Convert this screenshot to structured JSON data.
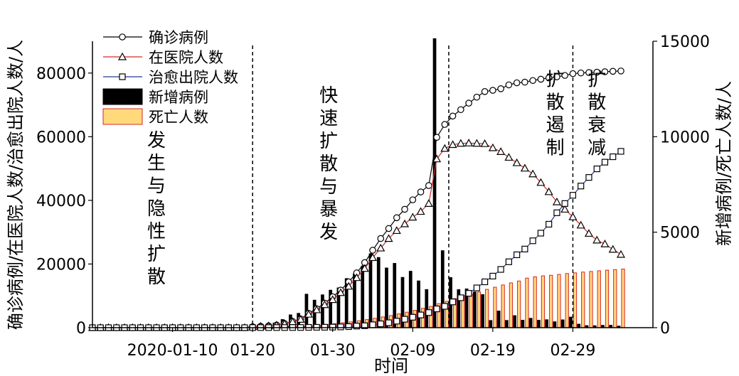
{
  "chart_data": {
    "type": "bar+line",
    "xlabel": "时间",
    "ylabel_left": "确诊病例/在医院人数/治愈出院人数/人",
    "ylabel_right": "新增病例/死亡人数/人",
    "ylim_left": [
      0,
      90000
    ],
    "ylim_right": [
      0,
      15000
    ],
    "xlim": [
      0,
      70
    ],
    "x_ticks": [
      {
        "pos": 10,
        "label": "2020-01-10"
      },
      {
        "pos": 20,
        "label": "01-20"
      },
      {
        "pos": 30,
        "label": "01-30"
      },
      {
        "pos": 40,
        "label": "02-09"
      },
      {
        "pos": 50,
        "label": "02-19"
      },
      {
        "pos": 60,
        "label": "02-29"
      }
    ],
    "y_ticks_left": [
      0,
      20000,
      40000,
      60000,
      80000
    ],
    "y_ticks_right": [
      0,
      5000,
      10000,
      15000
    ],
    "vlines": [
      20,
      44.5,
      60
    ],
    "phases": [
      {
        "label": "发生与隐性扩散",
        "x": 8,
        "y_top": 57000
      },
      {
        "label": "快速扩散与暴发",
        "x": 29.5,
        "y_top": 71000
      },
      {
        "label": "扩散遏制",
        "x": 57.8,
        "y_top": 76000
      },
      {
        "label": "扩散衰减",
        "x": 63,
        "y_top": 76000
      }
    ],
    "series": [
      {
        "name": "确诊病例",
        "kind": "line",
        "axis": "left",
        "color": "#000000",
        "marker": "circle",
        "x": [
          0,
          1,
          2,
          3,
          4,
          5,
          6,
          7,
          8,
          9,
          10,
          11,
          12,
          13,
          14,
          15,
          16,
          17,
          18,
          19,
          20,
          21,
          22,
          23,
          24,
          25,
          26,
          27,
          28,
          29,
          30,
          31,
          32,
          33,
          34,
          35,
          36,
          37,
          38,
          39,
          40,
          41,
          42,
          43,
          44,
          45,
          46,
          47,
          48,
          49,
          50,
          51,
          52,
          53,
          54,
          55,
          56,
          57,
          58,
          59,
          60,
          61,
          62,
          63,
          64,
          65,
          66
        ],
        "values": [
          0,
          0,
          0,
          0,
          0,
          0,
          0,
          0,
          0,
          0,
          0,
          0,
          0,
          0,
          0,
          0,
          0,
          0,
          0,
          0,
          291,
          440,
          571,
          830,
          1287,
          1975,
          2744,
          4515,
          5974,
          7711,
          9692,
          11791,
          14380,
          17205,
          20438,
          24324,
          28018,
          31161,
          34546,
          37198,
          40171,
          42638,
          44653,
          59804,
          63851,
          66492,
          68500,
          70548,
          72436,
          74185,
          74576,
          75077,
          76288,
          76936,
          77150,
          77658,
          78064,
          78497,
          78824,
          79251,
          79824,
          80026,
          80151,
          80270,
          80409,
          80552,
          80651
        ]
      },
      {
        "name": "在医院人数",
        "kind": "line",
        "axis": "left",
        "color": "#d62728",
        "marker": "triangle",
        "x": [
          0,
          1,
          2,
          3,
          4,
          5,
          6,
          7,
          8,
          9,
          10,
          11,
          12,
          13,
          14,
          15,
          16,
          17,
          18,
          19,
          20,
          21,
          22,
          23,
          24,
          25,
          26,
          27,
          28,
          29,
          30,
          31,
          32,
          33,
          34,
          35,
          36,
          37,
          38,
          39,
          40,
          41,
          42,
          43,
          44,
          45,
          46,
          47,
          48,
          49,
          50,
          51,
          52,
          53,
          54,
          55,
          56,
          57,
          58,
          59,
          60,
          61,
          62,
          63,
          64,
          65,
          66
        ],
        "values": [
          0,
          0,
          0,
          0,
          0,
          0,
          0,
          0,
          0,
          0,
          0,
          0,
          0,
          0,
          0,
          0,
          0,
          0,
          0,
          0,
          280,
          420,
          550,
          790,
          1200,
          1850,
          2600,
          4200,
          5600,
          7200,
          8800,
          11000,
          13000,
          15700,
          18600,
          22000,
          25000,
          28000,
          30500,
          32600,
          34700,
          36500,
          39000,
          53000,
          56300,
          57500,
          57900,
          58000,
          57900,
          57800,
          56500,
          55300,
          53500,
          51800,
          50100,
          48300,
          45600,
          42700,
          39500,
          37200,
          34800,
          32200,
          29600,
          27500,
          26300,
          24600,
          23000
        ]
      },
      {
        "name": "治愈出院人数",
        "kind": "line",
        "axis": "left",
        "color": "#1f3a93",
        "marker": "square",
        "x": [
          0,
          1,
          2,
          3,
          4,
          5,
          6,
          7,
          8,
          9,
          10,
          11,
          12,
          13,
          14,
          15,
          16,
          17,
          18,
          19,
          20,
          21,
          22,
          23,
          24,
          25,
          26,
          27,
          28,
          29,
          30,
          31,
          32,
          33,
          34,
          35,
          36,
          37,
          38,
          39,
          40,
          41,
          42,
          43,
          44,
          45,
          46,
          47,
          48,
          49,
          50,
          51,
          52,
          53,
          54,
          55,
          56,
          57,
          58,
          59,
          60,
          61,
          62,
          63,
          64,
          65,
          66
        ],
        "values": [
          0,
          0,
          0,
          0,
          0,
          0,
          0,
          0,
          0,
          0,
          0,
          0,
          0,
          0,
          0,
          0,
          0,
          0,
          0,
          0,
          25,
          28,
          30,
          35,
          40,
          50,
          60,
          100,
          120,
          130,
          170,
          240,
          330,
          500,
          600,
          900,
          1200,
          1540,
          2050,
          2650,
          3280,
          3990,
          4740,
          5900,
          6700,
          8100,
          9400,
          10800,
          12500,
          14400,
          16200,
          18300,
          20700,
          22900,
          24700,
          27300,
          29700,
          32500,
          36100,
          39000,
          41600,
          44500,
          47200,
          49900,
          52000,
          53700,
          55400
        ]
      },
      {
        "name": "新增病例",
        "kind": "bar",
        "axis": "right",
        "color": "#000000",
        "x": [
          20,
          21,
          22,
          23,
          24,
          25,
          26,
          27,
          28,
          29,
          30,
          31,
          32,
          33,
          34,
          35,
          36,
          37,
          38,
          39,
          40,
          41,
          42,
          43,
          44,
          45,
          46,
          47,
          48,
          49,
          50,
          51,
          52,
          53,
          54,
          55,
          56,
          57,
          58,
          59,
          60,
          61,
          62,
          63,
          64,
          65,
          66
        ],
        "values": [
          77,
          149,
          131,
          259,
          444,
          688,
          769,
          1771,
          1459,
          1737,
          1982,
          2102,
          2590,
          2829,
          3235,
          3887,
          3694,
          3143,
          3385,
          2652,
          2973,
          2467,
          2015,
          15152,
          4050,
          2641,
          2009,
          2048,
          1888,
          1749,
          394,
          889,
          397,
          648,
          409,
          508,
          406,
          433,
          327,
          427,
          573,
          202,
          125,
          119,
          139,
          143,
          99
        ]
      },
      {
        "name": "死亡人数",
        "kind": "bar",
        "axis": "right",
        "color": "#ffd97a",
        "edge": "#d62728",
        "x": [
          20,
          21,
          22,
          23,
          24,
          25,
          26,
          27,
          28,
          29,
          30,
          31,
          32,
          33,
          34,
          35,
          36,
          37,
          38,
          39,
          40,
          41,
          42,
          43,
          44,
          45,
          46,
          47,
          48,
          49,
          50,
          51,
          52,
          53,
          54,
          55,
          56,
          57,
          58,
          59,
          60,
          61,
          62,
          63,
          64,
          65,
          66
        ],
        "values": [
          6,
          9,
          17,
          25,
          41,
          56,
          80,
          106,
          132,
          170,
          213,
          259,
          304,
          361,
          425,
          490,
          563,
          636,
          722,
          811,
          908,
          1016,
          1113,
          1259,
          1380,
          1523,
          1665,
          1770,
          1868,
          2004,
          2118,
          2236,
          2345,
          2442,
          2592,
          2663,
          2715,
          2744,
          2788,
          2835,
          2870,
          2912,
          2943,
          2981,
          3012,
          3042,
          3070
        ]
      }
    ],
    "legend": {
      "placement": "top-left"
    }
  }
}
